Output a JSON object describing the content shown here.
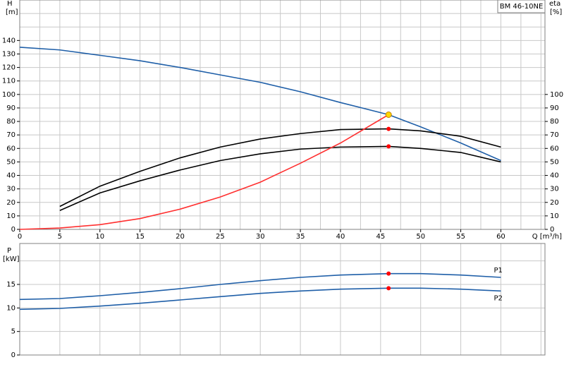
{
  "chart_data": [
    {
      "type": "line",
      "title": "BM 46-10NE",
      "x_label": "Q [m³/h]",
      "y_label": "H",
      "y_unit": "[m]",
      "y2_label": "eta",
      "y2_unit": "[%]",
      "xlim": [
        0,
        65.5
      ],
      "xticks": [
        0,
        5,
        10,
        15,
        20,
        25,
        30,
        35,
        40,
        45,
        50,
        55,
        60
      ],
      "xgrid": [
        2.5,
        5,
        7.5,
        10,
        12.5,
        15,
        17.5,
        20,
        22.5,
        25,
        27.5,
        30,
        32.5,
        35,
        37.5,
        40,
        42.5,
        45,
        47.5,
        50,
        52.5,
        55,
        57.5,
        60,
        62.5,
        65
      ],
      "ylim": [
        0,
        170
      ],
      "yticks": [
        0,
        10,
        20,
        30,
        40,
        50,
        60,
        70,
        80,
        90,
        100,
        110,
        120,
        130,
        140
      ],
      "ygrid": [
        10,
        20,
        30,
        40,
        50,
        60,
        70,
        80,
        90,
        100,
        110,
        120,
        130,
        140,
        150,
        160
      ],
      "y2lim": [
        0,
        170
      ],
      "y2ticks": [
        0,
        10,
        20,
        30,
        40,
        50,
        60,
        70,
        80,
        90,
        100
      ],
      "series": [
        {
          "color": "#1f5fa8",
          "x": [
            0,
            5,
            10,
            15,
            20,
            25,
            30,
            35,
            40,
            46,
            50,
            55,
            60
          ],
          "values": [
            135,
            133,
            129,
            125,
            120,
            114.5,
            109,
            102,
            94,
            85,
            76,
            64,
            51
          ]
        },
        {
          "color": "#000000",
          "axis": "y2",
          "x": [
            5,
            10,
            15,
            20,
            25,
            30,
            35,
            40,
            46,
            50,
            55,
            60
          ],
          "values": [
            17,
            32,
            43,
            53,
            61,
            67,
            71,
            74,
            74.5,
            73,
            69,
            61
          ]
        },
        {
          "color": "#000000",
          "axis": "y2",
          "x": [
            5,
            10,
            15,
            20,
            25,
            30,
            35,
            40,
            46,
            50,
            55,
            60
          ],
          "values": [
            14,
            27,
            36,
            44,
            51,
            56,
            59.5,
            61,
            61.5,
            60,
            57,
            50
          ]
        },
        {
          "color": "#ff3030",
          "x": [
            0,
            5,
            10,
            15,
            20,
            25,
            30,
            35,
            40,
            46
          ],
          "values": [
            0,
            1,
            3.5,
            8,
            15,
            24,
            35,
            49,
            64,
            85
          ]
        }
      ],
      "points": [
        {
          "x": 46,
          "y": 85,
          "color": "#ffd700"
        },
        {
          "x": 46,
          "y": 74.5,
          "color": "#ff0000"
        },
        {
          "x": 46,
          "y": 61.5,
          "color": "#ff0000"
        }
      ]
    },
    {
      "type": "line",
      "y_label": "P",
      "y_unit": "[kW]",
      "xlim": [
        0,
        65.5
      ],
      "xgrid": [
        5,
        10,
        15,
        20,
        25,
        30,
        35,
        40,
        45,
        50,
        55,
        60,
        65
      ],
      "ylim": [
        0,
        23.7
      ],
      "yticks": [
        0,
        5,
        10,
        15
      ],
      "ygrid": [
        5,
        10,
        15,
        20
      ],
      "series": [
        {
          "name": "P1",
          "color": "#1f5fa8",
          "x": [
            0,
            5,
            10,
            15,
            20,
            25,
            30,
            35,
            40,
            46,
            50,
            55,
            60
          ],
          "values": [
            11.8,
            12,
            12.6,
            13.3,
            14.1,
            15,
            15.8,
            16.5,
            17,
            17.3,
            17.3,
            17,
            16.5
          ]
        },
        {
          "name": "P2",
          "color": "#1f5fa8",
          "x": [
            0,
            5,
            10,
            15,
            20,
            25,
            30,
            35,
            40,
            46,
            50,
            55,
            60
          ],
          "values": [
            9.7,
            9.9,
            10.4,
            11,
            11.7,
            12.4,
            13.1,
            13.6,
            14,
            14.2,
            14.2,
            14,
            13.6
          ]
        }
      ],
      "points": [
        {
          "x": 46,
          "y": 17.3,
          "color": "#ff0000"
        },
        {
          "x": 46,
          "y": 14.2,
          "color": "#ff0000"
        }
      ]
    }
  ]
}
